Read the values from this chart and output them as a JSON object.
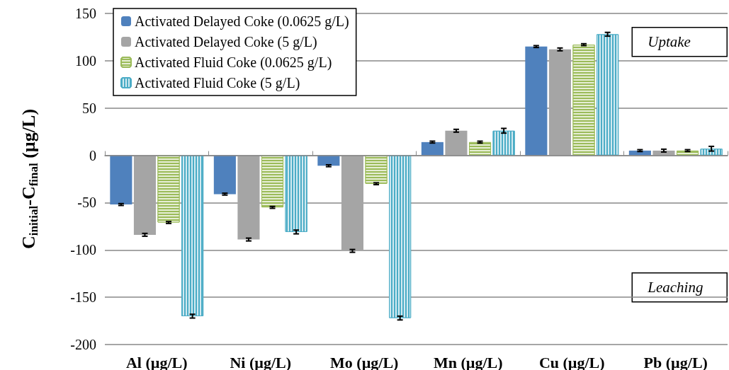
{
  "chart_data": {
    "type": "bar",
    "ylabel": "C$_{initial}$-C$_{final}$ (µg/L)",
    "categories": [
      "Al (µg/L)",
      "Ni (µg/L)",
      "Mo (µg/L)",
      "Mn (µg/L)",
      "Cu (µg/L)",
      "Pb (µg/L)"
    ],
    "series": [
      {
        "name": "Activated Delayed Coke (0.0625 g/L)",
        "color": "#4f81bd",
        "values": [
          -52,
          -41,
          -11,
          14,
          115,
          5
        ],
        "errors": [
          1,
          1,
          1,
          1,
          1,
          1
        ]
      },
      {
        "name": "Activated Delayed Coke (5 g/L)",
        "color": "#a5a5a5",
        "values": [
          -84,
          -89,
          -101,
          26,
          112,
          5
        ],
        "errors": [
          1.5,
          1.5,
          1.5,
          1.5,
          1.5,
          1.5
        ]
      },
      {
        "name": "Activated Fluid Coke (0.0625 g/L)",
        "color": "#9bbb59",
        "values": [
          -71,
          -55,
          -30,
          14,
          117,
          5
        ],
        "errors": [
          1,
          1,
          1,
          1,
          1,
          1
        ]
      },
      {
        "name": "Activated Fluid Coke (5 g/L)",
        "color": "#4bacc6",
        "values": [
          -170,
          -81,
          -172,
          26,
          128,
          7
        ],
        "errors": [
          2,
          2,
          2,
          2.5,
          2,
          2.5
        ]
      }
    ],
    "ylim": [
      -200,
      150
    ],
    "yticks": [
      -200,
      -150,
      -100,
      -50,
      0,
      50,
      100,
      150
    ],
    "grid": "y",
    "legend": "top left",
    "annotations": [
      "Uptake",
      "Leaching"
    ]
  }
}
